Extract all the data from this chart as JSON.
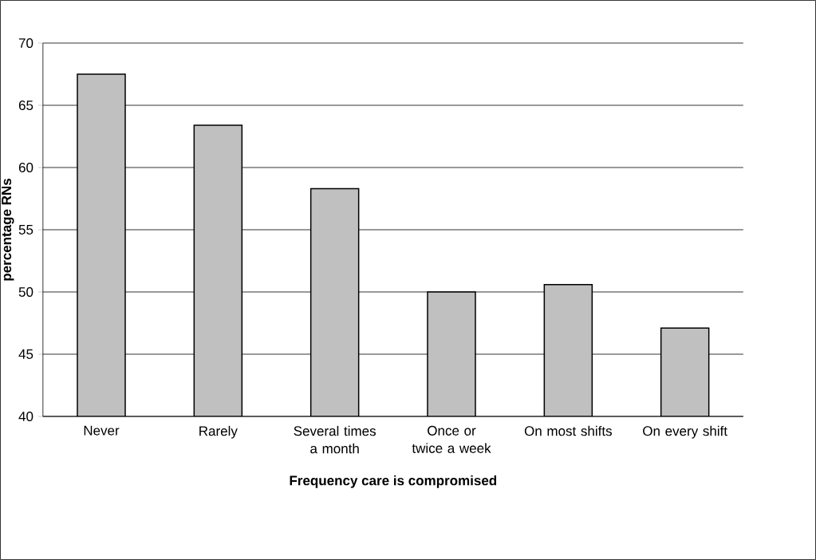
{
  "chart_data": {
    "type": "bar",
    "xlabel": "Frequency care is compromised",
    "ylabel": "percentage RNs",
    "categories": [
      "Never",
      "Rarely",
      "Several times a month",
      "Once or twice a week",
      "On most shifts",
      "On every shift"
    ],
    "values": [
      67.5,
      63.4,
      58.3,
      50.0,
      50.6,
      47.1
    ],
    "color": "#c0c0c0",
    "ylim": [
      40,
      70
    ],
    "yticks": [
      40,
      45,
      50,
      55,
      60,
      65,
      70
    ],
    "grid": "y"
  }
}
